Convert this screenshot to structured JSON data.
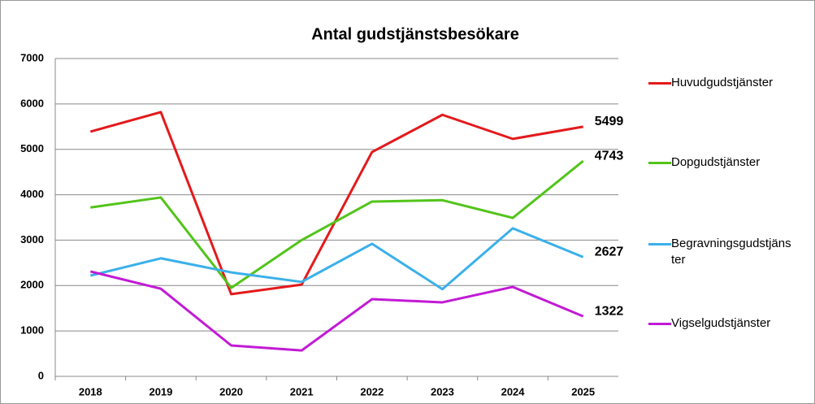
{
  "chart_data": {
    "type": "line",
    "title": "Antal gudstjänstsbesökare",
    "categories": [
      "2018",
      "2019",
      "2020",
      "2021",
      "2022",
      "2023",
      "2024",
      "2025"
    ],
    "series": [
      {
        "name": "Huvudgudstjänster",
        "color": "#e31a1c",
        "values": [
          5390,
          5820,
          1810,
          2020,
          4940,
          5760,
          5230,
          5499
        ]
      },
      {
        "name": "Dopgudstjänster",
        "color": "#52c41a",
        "values": [
          3720,
          3940,
          1950,
          3000,
          3850,
          3880,
          3490,
          4743
        ]
      },
      {
        "name": "Begravningsgudstjänster",
        "color": "#3bb0ea",
        "values": [
          2220,
          2600,
          2290,
          2080,
          2920,
          1920,
          3260,
          2627
        ]
      },
      {
        "name": "Vigselgudstjänster",
        "color": "#c21ad6",
        "values": [
          2310,
          1930,
          680,
          570,
          1700,
          1630,
          1970,
          1322
        ]
      }
    ],
    "ylim": [
      0,
      7000
    ],
    "yticks": [
      0,
      1000,
      2000,
      3000,
      4000,
      5000,
      6000,
      7000
    ],
    "grid": true,
    "legend": "right"
  }
}
